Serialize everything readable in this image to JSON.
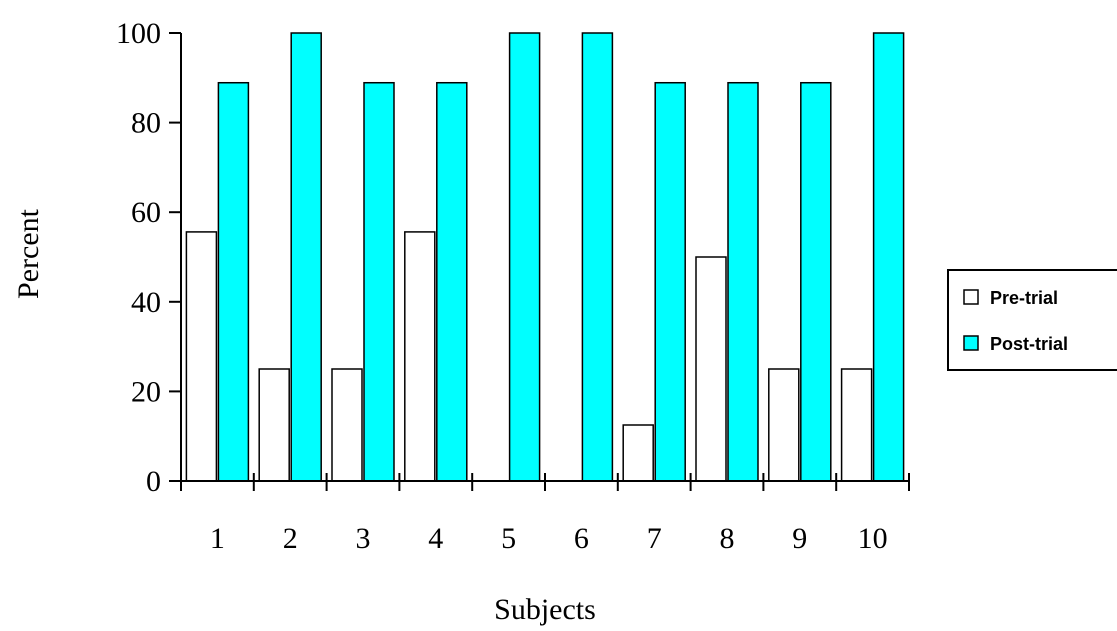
{
  "chart_data": {
    "type": "bar",
    "title": "",
    "xlabel": "Subjects",
    "ylabel": "Percent",
    "ylim": [
      0,
      100
    ],
    "yticks": [
      0,
      20,
      40,
      60,
      80,
      100
    ],
    "grid": false,
    "legend_position": "right",
    "categories": [
      "1",
      "2",
      "3",
      "4",
      "5",
      "6",
      "7",
      "8",
      "9",
      "10"
    ],
    "series": [
      {
        "name": "Pre-trial",
        "color": "#ffffff",
        "values": [
          55.6,
          25,
          25,
          55.6,
          0,
          0,
          12.5,
          50,
          25,
          25
        ]
      },
      {
        "name": "Post-trial",
        "color": "#00ffff",
        "values": [
          88.9,
          100,
          88.9,
          88.9,
          100,
          100,
          88.9,
          88.9,
          88.9,
          100
        ]
      }
    ]
  }
}
